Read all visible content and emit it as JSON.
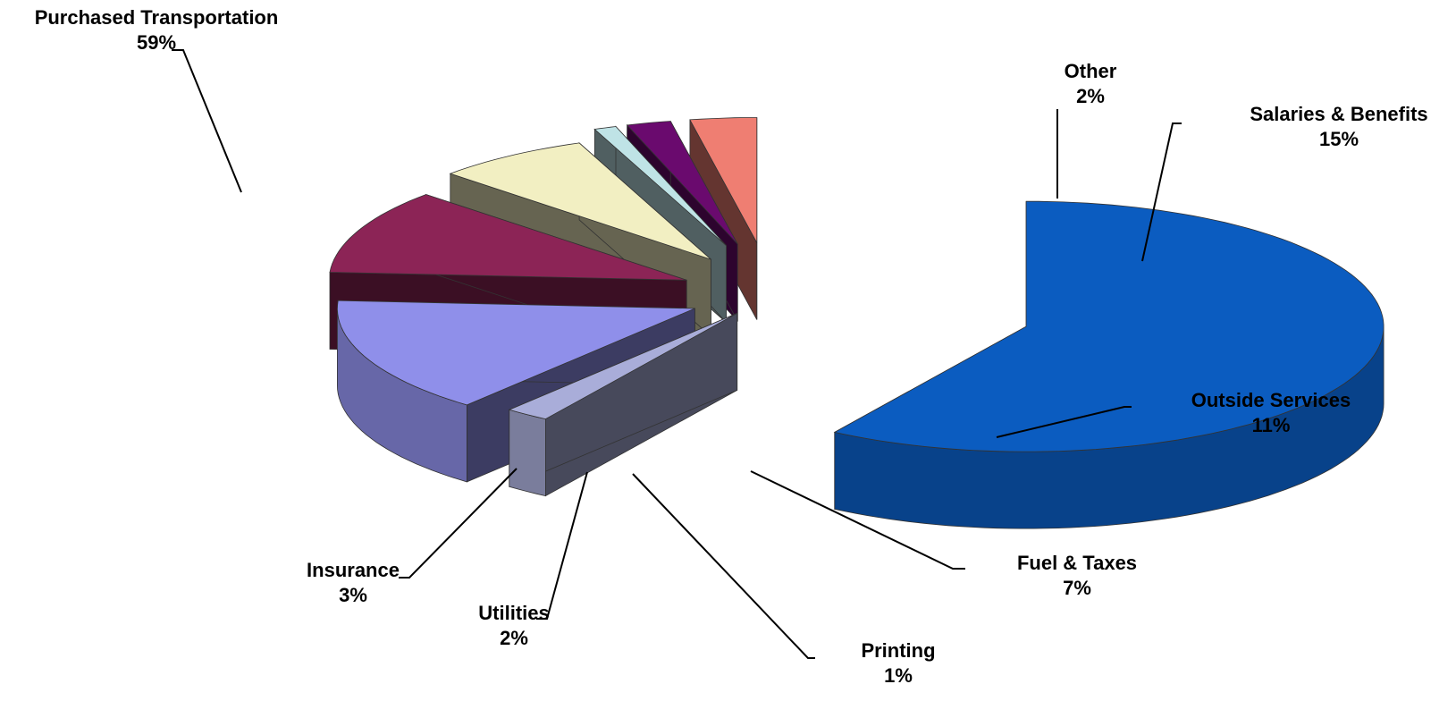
{
  "chart_data": {
    "type": "pie",
    "three_d": true,
    "exploded": true,
    "legend": "none",
    "slices": [
      {
        "name": "Purchased Transportation",
        "value": 59,
        "label": "59%",
        "color": "#0b5cc0"
      },
      {
        "name": "Other",
        "value": 2,
        "label": "2%",
        "color": "#a9add9"
      },
      {
        "name": "Salaries & Benefits",
        "value": 15,
        "label": "15%",
        "color": "#8f8fea"
      },
      {
        "name": "Outside Services",
        "value": 11,
        "label": "11%",
        "color": "#8c2456"
      },
      {
        "name": "Fuel & Taxes",
        "value": 7,
        "label": "7%",
        "color": "#f2efc2"
      },
      {
        "name": "Printing",
        "value": 1,
        "label": "1%",
        "color": "#bfe3e6"
      },
      {
        "name": "Utilities",
        "value": 2,
        "label": "2%",
        "color": "#6a0a6e"
      },
      {
        "name": "Insurance",
        "value": 3,
        "label": "3%",
        "color": "#ef7e72"
      }
    ]
  }
}
